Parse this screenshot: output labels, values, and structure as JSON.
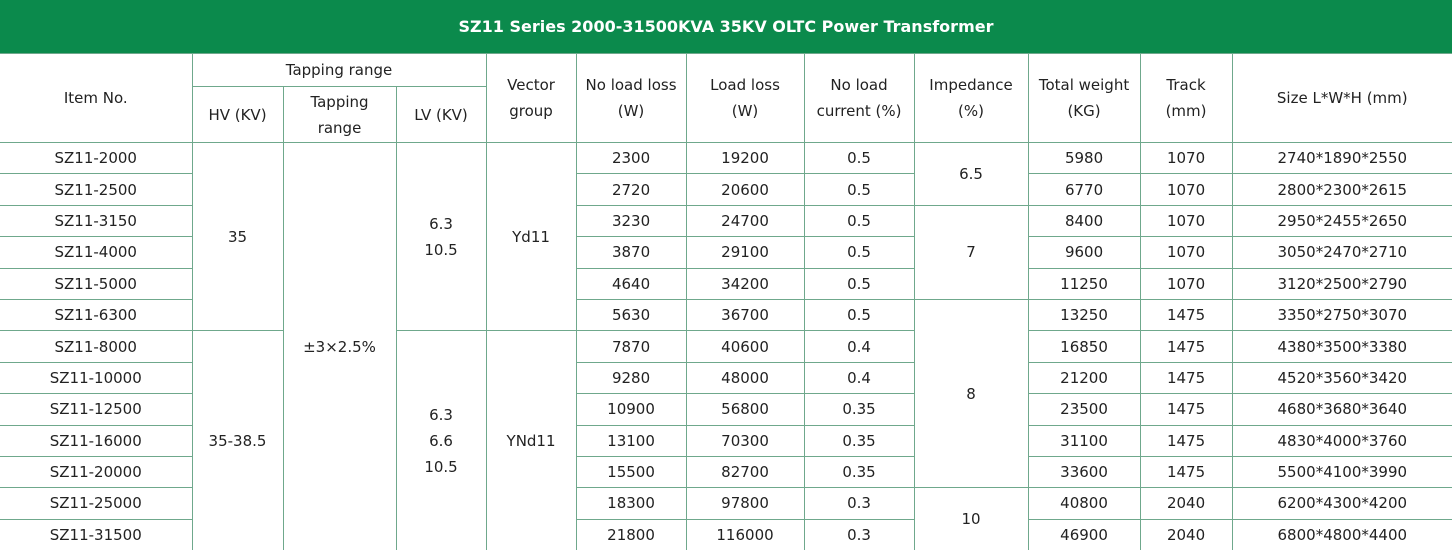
{
  "title": "SZ11 Series 2000-31500KVA 35KV OLTC Power Transformer",
  "header": {
    "item_no": "Item No.",
    "tapping_range": "Tapping range",
    "hv": "HV (KV)",
    "tapping": "Tapping\nrange",
    "lv": "LV (KV)",
    "vector_group": "Vector\ngroup",
    "no_load_loss": "No load loss\n(W)",
    "load_loss": "Load loss\n(W)",
    "no_load_current": "No load\ncurrent (%)",
    "impedance": "Impedance\n(%)",
    "total_weight": "Total weight\n(KG)",
    "track": "Track\n(mm)",
    "size": "Size L*W*H (mm)"
  },
  "rows": [
    {
      "item": "SZ11-2000",
      "no_load_loss": 2300,
      "load_loss": 19200,
      "no_load_current": 0.5,
      "total_weight": 5980,
      "track": 1070,
      "size": "2740*1890*2550"
    },
    {
      "item": "SZ11-2500",
      "no_load_loss": 2720,
      "load_loss": 20600,
      "no_load_current": 0.5,
      "total_weight": 6770,
      "track": 1070,
      "size": "2800*2300*2615"
    },
    {
      "item": "SZ11-3150",
      "no_load_loss": 3230,
      "load_loss": 24700,
      "no_load_current": 0.5,
      "total_weight": 8400,
      "track": 1070,
      "size": "2950*2455*2650"
    },
    {
      "item": "SZ11-4000",
      "no_load_loss": 3870,
      "load_loss": 29100,
      "no_load_current": 0.5,
      "total_weight": 9600,
      "track": 1070,
      "size": "3050*2470*2710"
    },
    {
      "item": "SZ11-5000",
      "no_load_loss": 4640,
      "load_loss": 34200,
      "no_load_current": 0.5,
      "total_weight": 11250,
      "track": 1070,
      "size": "3120*2500*2790"
    },
    {
      "item": "SZ11-6300",
      "no_load_loss": 5630,
      "load_loss": 36700,
      "no_load_current": 0.5,
      "total_weight": 13250,
      "track": 1475,
      "size": "3350*2750*3070"
    },
    {
      "item": "SZ11-8000",
      "no_load_loss": 7870,
      "load_loss": 40600,
      "no_load_current": 0.4,
      "total_weight": 16850,
      "track": 1475,
      "size": "4380*3500*3380"
    },
    {
      "item": "SZ11-10000",
      "no_load_loss": 9280,
      "load_loss": 48000,
      "no_load_current": 0.4,
      "total_weight": 21200,
      "track": 1475,
      "size": "4520*3560*3420"
    },
    {
      "item": "SZ11-12500",
      "no_load_loss": 10900,
      "load_loss": 56800,
      "no_load_current": 0.35,
      "total_weight": 23500,
      "track": 1475,
      "size": "4680*3680*3640"
    },
    {
      "item": "SZ11-16000",
      "no_load_loss": 13100,
      "load_loss": 70300,
      "no_load_current": 0.35,
      "total_weight": 31100,
      "track": 1475,
      "size": "4830*4000*3760"
    },
    {
      "item": "SZ11-20000",
      "no_load_loss": 15500,
      "load_loss": 82700,
      "no_load_current": 0.35,
      "total_weight": 33600,
      "track": 1475,
      "size": "5500*4100*3990"
    },
    {
      "item": "SZ11-25000",
      "no_load_loss": 18300,
      "load_loss": 97800,
      "no_load_current": 0.3,
      "total_weight": 40800,
      "track": 2040,
      "size": "6200*4300*4200"
    },
    {
      "item": "SZ11-31500",
      "no_load_loss": 21800,
      "load_loss": 116000,
      "no_load_current": 0.3,
      "total_weight": 46900,
      "track": 2040,
      "size": "6800*4800*4400"
    }
  ],
  "hv": [
    35,
    "35-38.5"
  ],
  "tapping": [
    "±3×2.5%"
  ],
  "lv": [
    "6.3\n10.5",
    "6.3\n6.6\n10.5"
  ],
  "vector_group": [
    "Yd11",
    "YNd11"
  ],
  "impedance": [
    6.5,
    7,
    8,
    10
  ]
}
